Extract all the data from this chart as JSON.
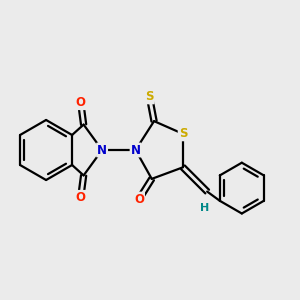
{
  "bg_color": "#ebebeb",
  "atom_colors": {
    "C": "#000000",
    "N": "#0000cc",
    "O": "#ff2200",
    "S": "#ccaa00",
    "H": "#008888"
  },
  "bond_color": "#000000",
  "bond_width": 1.6,
  "figsize": [
    3.0,
    3.0
  ],
  "dpi": 100
}
